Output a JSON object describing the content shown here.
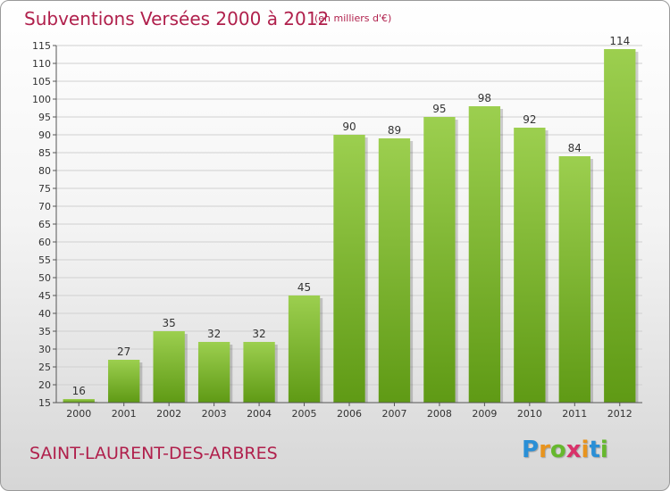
{
  "title": "Subventions Versées 2000 à 2012",
  "unit_note": "(en milliers d'€)",
  "place_name": "SAINT-LAURENT-DES-ARBRES",
  "logo": {
    "letters": [
      "P",
      "r",
      "o",
      "x",
      "i",
      "t",
      "i"
    ],
    "colors": [
      "#2a8fd6",
      "#e8941e",
      "#66b82e",
      "#d9326a",
      "#e8941e",
      "#2a8fd6",
      "#66b82e"
    ]
  },
  "chart_data": {
    "type": "bar",
    "title": "Subventions Versées 2000 à 2012",
    "subtitle": "(en milliers d'€)",
    "categories": [
      "2000",
      "2001",
      "2002",
      "2003",
      "2004",
      "2005",
      "2006",
      "2007",
      "2008",
      "2009",
      "2010",
      "2011",
      "2012"
    ],
    "values": [
      16,
      27,
      35,
      32,
      32,
      45,
      90,
      89,
      95,
      98,
      92,
      84,
      114
    ],
    "data_labels": [
      "16",
      "27",
      "35",
      "32",
      "32",
      "45",
      "90",
      "89",
      "95",
      "98",
      "92",
      "84",
      "114"
    ],
    "ylim": [
      15,
      115
    ],
    "yticks": [
      15,
      20,
      25,
      30,
      35,
      40,
      45,
      50,
      55,
      60,
      65,
      70,
      75,
      80,
      85,
      90,
      95,
      100,
      105,
      110,
      115
    ],
    "xlabel": "",
    "ylabel": "",
    "grid": true,
    "bar_color_top": "#9ccf4f",
    "bar_color_bottom": "#5f9a15"
  }
}
